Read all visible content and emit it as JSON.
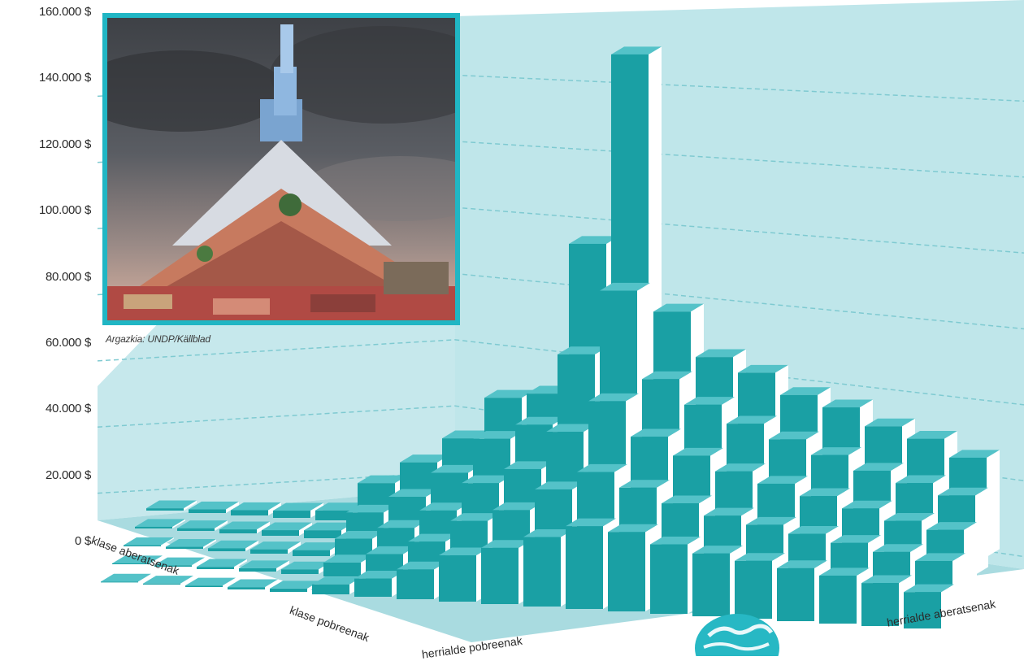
{
  "chart_data": {
    "type": "bar",
    "title": "",
    "yaxis": {
      "ticks": [
        "160.000 $",
        "140.000 $",
        "120.000 $",
        "100.000 $",
        "80.000 $",
        "60.000 $",
        "40.000 $",
        "20.000 $",
        "0 $"
      ],
      "ylim": [
        0,
        160000
      ],
      "grid": true
    },
    "x_axis": {
      "start_label": "herrialde pobreenak",
      "end_label": "herrialde aberatsenak"
    },
    "z_axis": {
      "start_label": "klase aberatsenak",
      "end_label": "klase pobreenak"
    },
    "series": [
      {
        "name": "klase aberatsenak",
        "values": [
          700,
          1100,
          1600,
          2200,
          3000,
          12000,
          19000,
          27000,
          40000,
          42000,
          88000,
          146000,
          69000,
          56000,
          52000,
          46000,
          43000,
          38000,
          35000,
          30000
        ]
      },
      {
        "name": "",
        "values": [
          500,
          800,
          1200,
          1700,
          2400,
          8500,
          14000,
          22000,
          33000,
          38000,
          60000,
          80000,
          54000,
          47000,
          42000,
          38000,
          34000,
          30000,
          27000,
          24000
        ]
      },
      {
        "name": "",
        "values": [
          350,
          600,
          900,
          1300,
          1800,
          6000,
          10000,
          16000,
          25000,
          30000,
          42000,
          52000,
          42000,
          37000,
          33000,
          30000,
          27000,
          24000,
          21000,
          19000
        ]
      },
      {
        "name": "",
        "values": [
          250,
          450,
          700,
          1000,
          1400,
          4200,
          7500,
          12000,
          19000,
          23000,
          30000,
          36000,
          32000,
          28000,
          25000,
          23000,
          21000,
          19000,
          17000,
          15000
        ]
      },
      {
        "name": "klase pobreenak",
        "values": [
          150,
          300,
          450,
          700,
          1000,
          3000,
          5500,
          9000,
          14000,
          17000,
          21000,
          25000,
          24000,
          21000,
          19000,
          17500,
          16000,
          14500,
          13000,
          11000
        ]
      }
    ]
  },
  "photo": {
    "credit": "Argazkia: UNDP/Källblad"
  },
  "colors": {
    "bar_front": "#1aa0a4",
    "bar_side": "#ffffff",
    "wall": "#bfe6ea",
    "floor": "#9ed6dc",
    "frame": "#20b6c4"
  }
}
